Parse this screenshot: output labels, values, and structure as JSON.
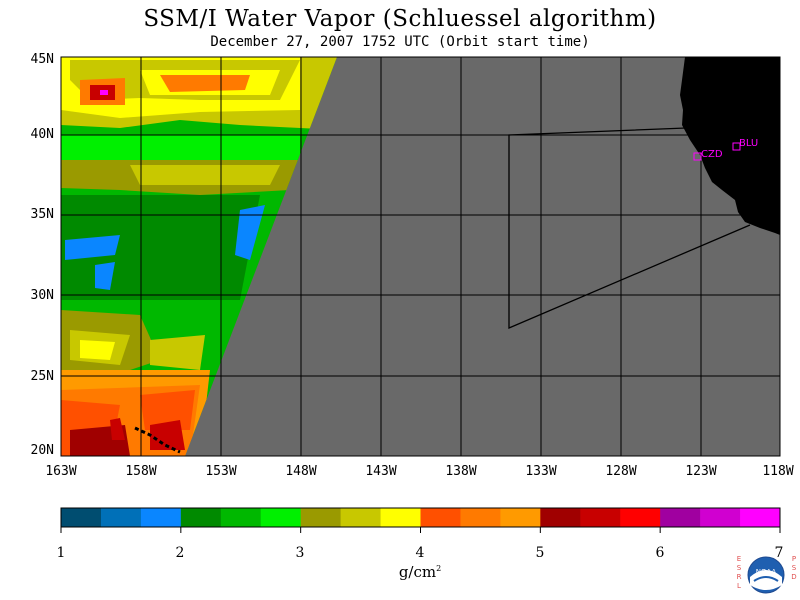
{
  "title": "SSM/I Water Vapor (Schluessel algorithm)",
  "subtitle": "December 27, 2007  1752 UTC  (Orbit start time)",
  "lat_labels": [
    "45N",
    "40N",
    "35N",
    "30N",
    "25N",
    "20N"
  ],
  "lon_labels": [
    "163W",
    "158W",
    "153W",
    "148W",
    "143W",
    "138W",
    "133W",
    "128W",
    "123W",
    "118W"
  ],
  "stations": [
    {
      "code": "BLU"
    },
    {
      "code": "CZD"
    }
  ],
  "colorbar": {
    "ticks": [
      "1",
      "2",
      "3",
      "4",
      "5",
      "6",
      "7"
    ],
    "units": "g/cm",
    "units_exponent": "2",
    "colors": [
      "#004d70",
      "#0070b8",
      "#0a86ff",
      "#008a00",
      "#00b800",
      "#00f000",
      "#9a9a00",
      "#c8c800",
      "#ffff00",
      "#ff5000",
      "#ff7a00",
      "#ff9a00",
      "#a00000",
      "#c80000",
      "#ff0000",
      "#a000a0",
      "#d000d0",
      "#ff00ff"
    ]
  },
  "colors": {
    "ocean_nodata": "#696969",
    "land": "#000000",
    "station": "#ff00ff"
  },
  "logo": {
    "left": "E S R L",
    "right": "P S D",
    "center": "NOAA"
  }
}
